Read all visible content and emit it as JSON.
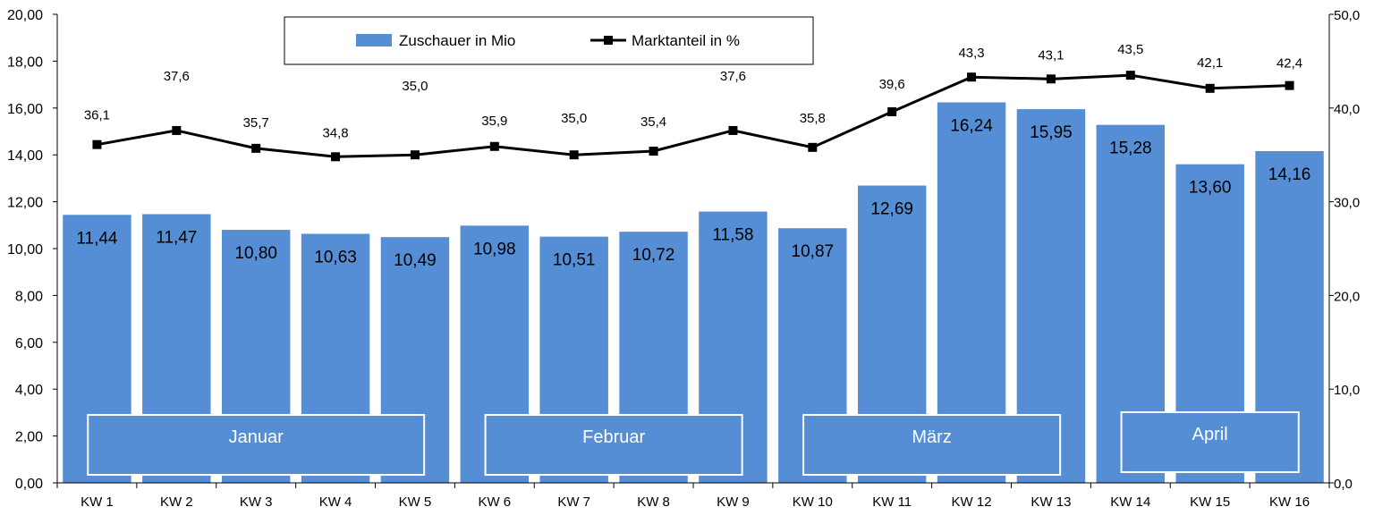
{
  "chart_data": {
    "type": "bar+line",
    "categories": [
      "KW 1",
      "KW 2",
      "KW 3",
      "KW 4",
      "KW 5",
      "KW 6",
      "KW 7",
      "KW 8",
      "KW 9",
      "KW 10",
      "KW 11",
      "KW 12",
      "KW 13",
      "KW 14",
      "KW 15",
      "KW 16"
    ],
    "series": [
      {
        "name": "Zuschauer in Mio",
        "type": "bar",
        "axis": "left",
        "color": "#558ED5",
        "values": [
          11.44,
          11.47,
          10.8,
          10.63,
          10.49,
          10.98,
          10.51,
          10.72,
          11.58,
          10.87,
          12.69,
          16.24,
          15.95,
          15.28,
          13.6,
          14.16
        ],
        "labels": [
          "11,44",
          "11,47",
          "10,80",
          "10,63",
          "10,49",
          "10,98",
          "10,51",
          "10,72",
          "11,58",
          "10,87",
          "12,69",
          "16,24",
          "15,95",
          "15,28",
          "13,60",
          "14,16"
        ]
      },
      {
        "name": "Marktanteil in %",
        "type": "line",
        "axis": "right",
        "color": "#000000",
        "values": [
          36.1,
          37.6,
          35.7,
          34.8,
          35.0,
          35.9,
          35.0,
          35.4,
          37.6,
          35.8,
          39.6,
          43.3,
          43.1,
          43.5,
          42.1,
          42.4
        ],
        "labels": [
          "36,1",
          "37,6",
          "35,7",
          "34,8",
          "35,0",
          "35,9",
          "35,0",
          "35,4",
          "37,6",
          "35,8",
          "39,6",
          "43,3",
          "43,1",
          "43,5",
          "42,1",
          "42,4"
        ]
      }
    ],
    "y_left": {
      "min": 0,
      "max": 20,
      "step": 2,
      "ticks": [
        "0,00",
        "2,00",
        "4,00",
        "6,00",
        "8,00",
        "10,00",
        "12,00",
        "14,00",
        "16,00",
        "18,00",
        "20,00"
      ]
    },
    "y_right": {
      "min": 0,
      "max": 50,
      "step": 10,
      "ticks": [
        "0,0",
        "10,0",
        "20,0",
        "30,0",
        "40,0",
        "50,0"
      ]
    },
    "month_boxes": [
      {
        "label": "Januar",
        "from": 0,
        "to": 4
      },
      {
        "label": "Februar",
        "from": 5,
        "to": 8
      },
      {
        "label": "März",
        "from": 9,
        "to": 12
      },
      {
        "label": "April",
        "from": 13,
        "to": 15
      }
    ],
    "legend_position": "top-center",
    "title": ""
  }
}
